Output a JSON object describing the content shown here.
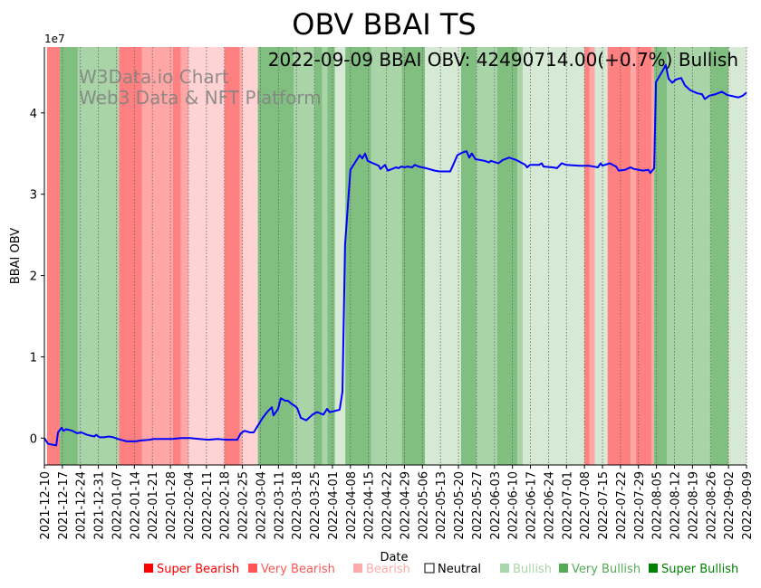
{
  "chart_data": {
    "type": "line",
    "title": "OBV BBAI TS",
    "annotation": "2022-09-09 BBAI OBV: 42490714.00(+0.7%) Bullish",
    "watermark": [
      "W3Data.io Chart",
      "Web3 Data & NFT Platform"
    ],
    "xlabel": "Date",
    "ylabel": "BBAI OBV",
    "y_offset_label": "1e7",
    "start_date": "2021-12-10",
    "xlim_days": [
      0,
      273
    ],
    "ylim": [
      -0.33,
      4.81
    ],
    "yticks": [
      0,
      1,
      2,
      3,
      4
    ],
    "ytick_labels": [
      "0",
      "1",
      "2",
      "3",
      "4"
    ],
    "xtick_days": [
      0,
      7,
      14,
      21,
      28,
      35,
      42,
      49,
      56,
      63,
      70,
      77,
      84,
      91,
      98,
      105,
      112,
      119,
      126,
      133,
      140,
      147,
      154,
      161,
      168,
      175,
      182,
      189,
      196,
      203,
      210,
      217,
      224,
      231,
      238,
      245,
      252,
      259,
      266,
      273
    ],
    "xtick_labels": [
      "2021-12-10",
      "2021-12-17",
      "2021-12-24",
      "2021-12-31",
      "2022-01-07",
      "2022-01-14",
      "2022-01-21",
      "2022-01-28",
      "2022-02-04",
      "2022-02-11",
      "2022-02-18",
      "2022-02-25",
      "2022-03-04",
      "2022-03-11",
      "2022-03-18",
      "2022-03-25",
      "2022-04-01",
      "2022-04-08",
      "2022-04-15",
      "2022-04-22",
      "2022-04-29",
      "2022-05-06",
      "2022-05-13",
      "2022-05-20",
      "2022-05-27",
      "2022-06-03",
      "2022-06-10",
      "2022-06-17",
      "2022-06-24",
      "2022-07-01",
      "2022-07-08",
      "2022-07-15",
      "2022-07-22",
      "2022-07-29",
      "2022-08-05",
      "2022-08-12",
      "2022-08-19",
      "2022-08-26",
      "2022-09-02",
      "2022-09-09"
    ],
    "grid": "x-dotted",
    "series": [
      {
        "name": "OBV",
        "color": "#0000ff",
        "x": [
          0,
          1.4,
          4.6,
          5.3,
          6.7,
          7.4,
          8.5,
          10.9,
          12.7,
          14.4,
          16.6,
          18,
          19.4,
          20.1,
          21.5,
          23.2,
          25,
          26.8,
          28.5,
          32,
          33.8,
          35.6,
          37.3,
          40.9,
          42.6,
          46.1,
          49.7,
          53.2,
          56.7,
          60.2,
          63.7,
          67.3,
          70.8,
          75,
          76.4,
          77.8,
          79.9,
          81.4,
          83.1,
          84.9,
          86.6,
          88.4,
          89.1,
          90.9,
          91.9,
          93.7,
          94.7,
          96.2,
          97.2,
          98.3,
          99.7,
          101.8,
          104.3,
          106,
          108.5,
          109.9,
          110.9,
          112.4,
          114.8,
          115.9,
          116.9,
          119,
          120.8,
          122.6,
          123.6,
          124.7,
          125.7,
          127.1,
          130,
          130.7,
          132.4,
          133.5,
          135.2,
          136.7,
          137.7,
          138.8,
          140.2,
          141.2,
          143,
          144,
          145.5,
          148.3,
          151.8,
          153.6,
          157.8,
          158.8,
          160.6,
          162.4,
          164.1,
          165.2,
          166.2,
          167.6,
          171.2,
          172.9,
          173.6,
          176.5,
          178.2,
          180.7,
          183.5,
          187,
          187.7,
          188.8,
          192.3,
          193.4,
          194.1,
          197.6,
          199.3,
          201.1,
          202.9,
          208.1,
          211.7,
          215.2,
          216.3,
          217,
          219.8,
          222.3,
          223.3,
          225.8,
          227.9,
          229.3,
          232.8,
          234.9,
          235.6,
          237.1,
          237.8,
          240.6,
          241.6,
          242.7,
          244.1,
          245.5,
          247.6,
          249,
          251.1,
          253.9,
          255.7,
          256.8,
          258.5,
          261,
          263.4,
          265.5,
          269.8,
          271.5,
          273
        ],
        "y": [
          0,
          -0.07,
          -0.09,
          0.07,
          0.13,
          0.09,
          0.11,
          0.09,
          0.06,
          0.07,
          0.04,
          0.03,
          0.02,
          0.04,
          0.01,
          0.01,
          0.02,
          0.01,
          -0.01,
          -0.04,
          -0.04,
          -0.04,
          -0.03,
          -0.02,
          -0.01,
          -0.01,
          -0.01,
          0,
          0,
          -0.01,
          -0.02,
          -0.01,
          -0.02,
          -0.02,
          0.06,
          0.09,
          0.07,
          0.07,
          0.16,
          0.25,
          0.32,
          0.38,
          0.28,
          0.36,
          0.49,
          0.46,
          0.46,
          0.42,
          0.4,
          0.37,
          0.25,
          0.22,
          0.29,
          0.32,
          0.29,
          0.36,
          0.32,
          0.33,
          0.35,
          0.57,
          2.38,
          3.3,
          3.39,
          3.48,
          3.44,
          3.5,
          3.41,
          3.39,
          3.35,
          3.31,
          3.36,
          3.29,
          3.31,
          3.33,
          3.32,
          3.34,
          3.33,
          3.34,
          3.33,
          3.36,
          3.34,
          3.32,
          3.29,
          3.28,
          3.28,
          3.35,
          3.48,
          3.51,
          3.53,
          3.45,
          3.5,
          3.43,
          3.41,
          3.39,
          3.41,
          3.38,
          3.42,
          3.45,
          3.42,
          3.36,
          3.33,
          3.36,
          3.36,
          3.38,
          3.34,
          3.33,
          3.32,
          3.38,
          3.36,
          3.35,
          3.35,
          3.33,
          3.38,
          3.35,
          3.38,
          3.34,
          3.29,
          3.3,
          3.33,
          3.31,
          3.29,
          3.3,
          3.26,
          3.32,
          4.38,
          4.53,
          4.59,
          4.42,
          4.37,
          4.41,
          4.43,
          4.34,
          4.28,
          4.24,
          4.23,
          4.17,
          4.21,
          4.23,
          4.26,
          4.22,
          4.19,
          4.21,
          4.249
        ]
      }
    ],
    "sentiment_bands": [
      {
        "from": 1,
        "to": 6,
        "level": "super_bearish"
      },
      {
        "from": 6,
        "to": 13,
        "level": "very_bullish"
      },
      {
        "from": 13,
        "to": 29,
        "level": "bullish"
      },
      {
        "from": 29,
        "to": 38,
        "level": "super_bearish"
      },
      {
        "from": 38,
        "to": 50,
        "level": "very_bearish"
      },
      {
        "from": 50,
        "to": 53,
        "level": "super_bearish"
      },
      {
        "from": 53,
        "to": 56,
        "level": "very_bearish"
      },
      {
        "from": 56,
        "to": 70,
        "level": "bearish"
      },
      {
        "from": 70,
        "to": 76,
        "level": "super_bearish"
      },
      {
        "from": 76,
        "to": 77,
        "level": "very_bearish"
      },
      {
        "from": 77,
        "to": 83,
        "level": "bearish"
      },
      {
        "from": 83,
        "to": 97,
        "level": "very_bullish"
      },
      {
        "from": 97,
        "to": 105,
        "level": "bullish"
      },
      {
        "from": 105,
        "to": 108,
        "level": "very_bullish"
      },
      {
        "from": 108,
        "to": 110,
        "level": "bullish"
      },
      {
        "from": 110,
        "to": 113,
        "level": "very_bullish"
      },
      {
        "from": 113,
        "to": 117,
        "level": "neutral_bullish"
      },
      {
        "from": 117,
        "to": 127,
        "level": "very_bullish"
      },
      {
        "from": 127,
        "to": 139,
        "level": "bullish"
      },
      {
        "from": 139,
        "to": 148,
        "level": "very_bullish"
      },
      {
        "from": 148,
        "to": 162,
        "level": "neutral_bullish"
      },
      {
        "from": 162,
        "to": 168,
        "level": "very_bullish"
      },
      {
        "from": 168,
        "to": 176,
        "level": "bullish"
      },
      {
        "from": 176,
        "to": 184,
        "level": "very_bullish"
      },
      {
        "from": 184,
        "to": 186,
        "level": "bullish"
      },
      {
        "from": 186,
        "to": 210,
        "level": "neutral_bullish"
      },
      {
        "from": 210,
        "to": 212,
        "level": "super_bearish"
      },
      {
        "from": 212,
        "to": 214,
        "level": "very_bearish"
      },
      {
        "from": 214,
        "to": 219,
        "level": "neutral_bullish"
      },
      {
        "from": 219,
        "to": 228,
        "level": "super_bearish"
      },
      {
        "from": 228,
        "to": 230,
        "level": "very_bearish"
      },
      {
        "from": 230,
        "to": 236,
        "level": "super_bearish"
      },
      {
        "from": 236,
        "to": 237,
        "level": "very_bearish"
      },
      {
        "from": 237,
        "to": 242,
        "level": "very_bullish"
      },
      {
        "from": 242,
        "to": 259,
        "level": "bullish"
      },
      {
        "from": 259,
        "to": 266,
        "level": "very_bullish"
      },
      {
        "from": 266,
        "to": 273,
        "level": "neutral_bullish"
      }
    ],
    "band_colors": {
      "super_bearish": "#ff8080",
      "very_bearish": "#ffa6a6",
      "bearish": "#ffd3d3",
      "neutral_bullish": "#d5e9d5",
      "bullish": "#a8d4a8",
      "very_bullish": "#80bf80"
    },
    "legend": [
      {
        "label": "Super Bearish",
        "color": "#ff0000",
        "text_color": "#ff0000"
      },
      {
        "label": "Very Bearish",
        "color": "#ff5555",
        "text_color": "#ff5555"
      },
      {
        "label": "Bearish",
        "color": "#ffaaaa",
        "text_color": "#ffaaaa"
      },
      {
        "label": "Neutral",
        "color": "#ffffff",
        "text_color": "#000000"
      },
      {
        "label": "Bullish",
        "color": "#aad4aa",
        "text_color": "#aad4aa"
      },
      {
        "label": "Very Bullish",
        "color": "#55aa55",
        "text_color": "#55aa55"
      },
      {
        "label": "Super Bullish",
        "color": "#008000",
        "text_color": "#008000"
      }
    ],
    "legend_placement": "bottom-right"
  }
}
